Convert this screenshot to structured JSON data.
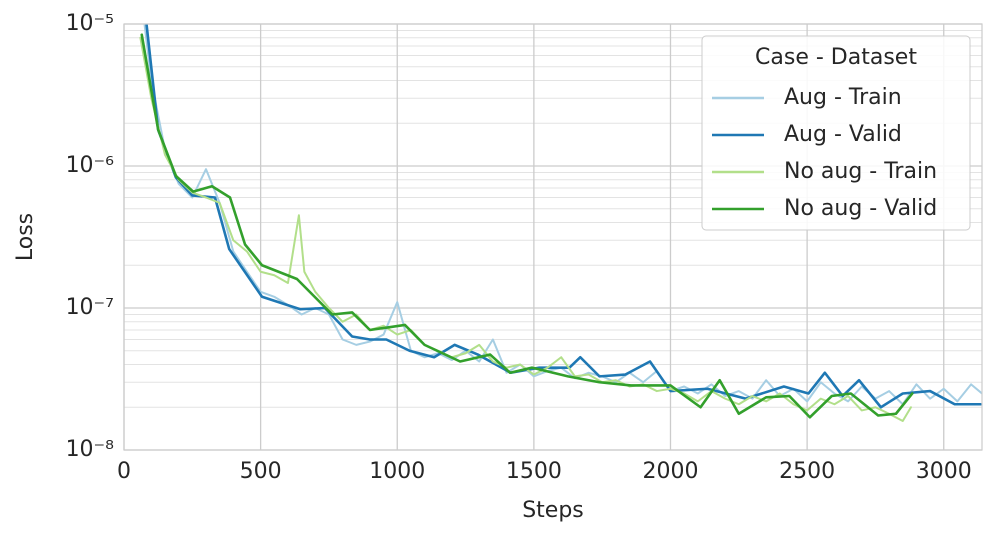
{
  "chart_data": {
    "type": "line",
    "xlabel": "Steps",
    "ylabel": "Loss",
    "xlim": [
      0,
      3140
    ],
    "ylim": [
      1e-08,
      1e-05
    ],
    "log_y": true,
    "grid": true,
    "xticks": [
      0,
      500,
      1000,
      1500,
      2000,
      2500,
      3000
    ],
    "yticks": [
      {
        "value": 1e-08,
        "label": "10⁻⁸"
      },
      {
        "value": 1e-07,
        "label": "10⁻⁷"
      },
      {
        "value": 1e-06,
        "label": "10⁻⁶"
      },
      {
        "value": 1e-05,
        "label": "10⁻⁵"
      }
    ],
    "yminorticks": [
      2e-08,
      3e-08,
      4e-08,
      5e-08,
      6e-08,
      7e-08,
      8e-08,
      9e-08,
      2e-07,
      3e-07,
      4e-07,
      5e-07,
      6e-07,
      7e-07,
      8e-07,
      9e-07,
      2e-06,
      3e-06,
      4e-06,
      5e-06,
      6e-06,
      7e-06,
      8e-06,
      9e-06
    ],
    "legend_title": "Case - Dataset",
    "legend_loc": "upper right",
    "series": [
      {
        "name": "Aug - Train",
        "color": "#a6cee3",
        "x": [
          75,
          100,
          150,
          200,
          250,
          300,
          350,
          400,
          450,
          500,
          550,
          600,
          650,
          700,
          750,
          800,
          850,
          900,
          950,
          1000,
          1050,
          1100,
          1150,
          1200,
          1250,
          1300,
          1350,
          1400,
          1450,
          1500,
          1550,
          1600,
          1650,
          1700,
          1750,
          1800,
          1850,
          1900,
          1950,
          2000,
          2050,
          2100,
          2150,
          2200,
          2250,
          2300,
          2350,
          2400,
          2450,
          2500,
          2550,
          2600,
          2650,
          2700,
          2750,
          2800,
          2850,
          2900,
          2950,
          3000,
          3050,
          3100,
          3140
        ],
        "values": [
          1e-05,
          4e-06,
          1.3e-06,
          7.5e-07,
          6e-07,
          9.5e-07,
          5.5e-07,
          2.5e-07,
          1.8e-07,
          1.3e-07,
          1.2e-07,
          1.05e-07,
          9e-08,
          1e-07,
          9e-08,
          6e-08,
          5.5e-08,
          5.8e-08,
          6.5e-08,
          1.1e-07,
          5e-08,
          4.5e-08,
          4.8e-08,
          4.3e-08,
          5e-08,
          4.2e-08,
          6e-08,
          3.5e-08,
          4e-08,
          3.3e-08,
          3.6e-08,
          3.8e-08,
          3.2e-08,
          3.5e-08,
          3.3e-08,
          3e-08,
          3.5e-08,
          3e-08,
          3.6e-08,
          2.6e-08,
          2.8e-08,
          2.5e-08,
          2.9e-08,
          2.4e-08,
          2.6e-08,
          2.3e-08,
          3.1e-08,
          2.4e-08,
          2.7e-08,
          2.2e-08,
          3e-08,
          2.5e-08,
          2.2e-08,
          2.8e-08,
          2.3e-08,
          2.6e-08,
          2.1e-08,
          2.9e-08,
          2.3e-08,
          2.7e-08,
          2.2e-08,
          2.9e-08,
          2.5e-08
        ]
      },
      {
        "name": "Aug - Valid",
        "color": "#1f78b4",
        "x": [
          80,
          125,
          190,
          250,
          333,
          385,
          505,
          645,
          735,
          835,
          900,
          960,
          1045,
          1135,
          1210,
          1295,
          1415,
          1520,
          1630,
          1670,
          1740,
          1835,
          1925,
          2000,
          2135,
          2275,
          2415,
          2505,
          2565,
          2630,
          2690,
          2770,
          2850,
          2950,
          3040,
          3135
        ],
        "values": [
          1.1e-05,
          1.8e-06,
          8.3e-07,
          6.2e-07,
          6e-07,
          2.6e-07,
          1.2e-07,
          9.8e-08,
          1e-07,
          6.3e-08,
          6e-08,
          6e-08,
          5e-08,
          4.5e-08,
          5.5e-08,
          4.7e-08,
          3.5e-08,
          3.8e-08,
          3.8e-08,
          4.5e-08,
          3.3e-08,
          3.4e-08,
          4.2e-08,
          2.6e-08,
          2.7e-08,
          2.3e-08,
          2.8e-08,
          2.5e-08,
          3.5e-08,
          2.4e-08,
          3.1e-08,
          2e-08,
          2.5e-08,
          2.6e-08,
          2.1e-08,
          2.1e-08
        ]
      },
      {
        "name": "No aug - Train",
        "color": "#b2df8a",
        "x": [
          60,
          100,
          150,
          200,
          250,
          300,
          350,
          400,
          450,
          500,
          550,
          600,
          640,
          660,
          700,
          750,
          800,
          850,
          900,
          950,
          1000,
          1050,
          1100,
          1150,
          1200,
          1250,
          1300,
          1350,
          1400,
          1450,
          1500,
          1550,
          1600,
          1650,
          1700,
          1750,
          1800,
          1850,
          1900,
          1950,
          2000,
          2050,
          2100,
          2150,
          2200,
          2250,
          2300,
          2350,
          2400,
          2450,
          2500,
          2550,
          2600,
          2650,
          2700,
          2750,
          2800,
          2850,
          2880
        ],
        "values": [
          8e-06,
          3e-06,
          1.2e-06,
          8e-07,
          6.5e-07,
          6e-07,
          5.5e-07,
          3e-07,
          2.5e-07,
          1.8e-07,
          1.7e-07,
          1.5e-07,
          4.5e-07,
          1.8e-07,
          1.3e-07,
          1e-07,
          8e-08,
          9e-08,
          7e-08,
          7.5e-08,
          6.5e-08,
          7e-08,
          5.5e-08,
          5e-08,
          4.5e-08,
          4.8e-08,
          5.5e-08,
          4.2e-08,
          3.8e-08,
          4e-08,
          3.4e-08,
          3.8e-08,
          4.5e-08,
          3.3e-08,
          3.4e-08,
          3e-08,
          3.1e-08,
          2.8e-08,
          2.9e-08,
          2.6e-08,
          2.7e-08,
          2.5e-08,
          2.2e-08,
          2.6e-08,
          2.3e-08,
          2.1e-08,
          2.4e-08,
          2.2e-08,
          2.5e-08,
          2.1e-08,
          1.9e-08,
          2.3e-08,
          2.1e-08,
          2.4e-08,
          1.9e-08,
          2e-08,
          1.8e-08,
          1.6e-08,
          2e-08
        ]
      },
      {
        "name": "No aug - Valid",
        "color": "#33a02c",
        "x": [
          65,
          125,
          190,
          253,
          322,
          388,
          443,
          505,
          633,
          762,
          835,
          900,
          1028,
          1100,
          1230,
          1340,
          1413,
          1493,
          1625,
          1740,
          1855,
          2000,
          2110,
          2180,
          2250,
          2350,
          2435,
          2510,
          2590,
          2660,
          2760,
          2825,
          2885
        ],
        "values": [
          8.4e-06,
          1.8e-06,
          8.5e-07,
          6.6e-07,
          7.2e-07,
          6e-07,
          2.8e-07,
          2e-07,
          1.6e-07,
          9e-08,
          9.3e-08,
          7e-08,
          7.6e-08,
          5.5e-08,
          4.2e-08,
          4.7e-08,
          3.5e-08,
          3.8e-08,
          3.3e-08,
          3e-08,
          2.85e-08,
          2.85e-08,
          2e-08,
          3.1e-08,
          1.8e-08,
          2.35e-08,
          2.4e-08,
          1.7e-08,
          2.4e-08,
          2.5e-08,
          1.75e-08,
          1.8e-08,
          2.5e-08
        ]
      }
    ]
  }
}
